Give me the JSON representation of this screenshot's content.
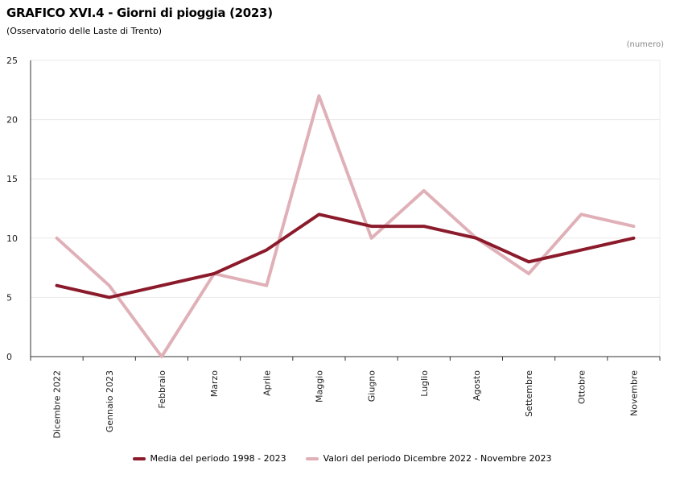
{
  "chart_data": {
    "type": "line",
    "title": "GRAFICO XVI.4 - Giorni di pioggia (2023)",
    "subtitle": "(Osservatorio delle Laste di Trento)",
    "unit": "(numero)",
    "xlabel": "",
    "ylabel": "",
    "ylim": [
      0,
      25
    ],
    "yticks": [
      0,
      5,
      10,
      15,
      20,
      25
    ],
    "grid": true,
    "legend_position": "bottom",
    "categories": [
      "Dicembre 2022",
      "Gennaio 2023",
      "Febbraio",
      "Marzo",
      "Aprile",
      "Maggio",
      "Giugno",
      "Luglio",
      "Agosto",
      "Settembre",
      "Ottobre",
      "Novembre"
    ],
    "series": [
      {
        "name": "Media del periodo 1998 - 2023",
        "color": "#8b1a2b",
        "values": [
          6,
          5,
          6,
          7,
          9,
          12,
          11,
          11,
          10,
          8,
          9,
          10
        ]
      },
      {
        "name": "Valori del periodo Dicembre 2022 - Novembre 2023",
        "color": "#e0b0b8",
        "values": [
          10,
          6,
          0,
          7,
          6,
          22,
          10,
          14,
          10,
          7,
          12,
          11
        ]
      }
    ]
  }
}
